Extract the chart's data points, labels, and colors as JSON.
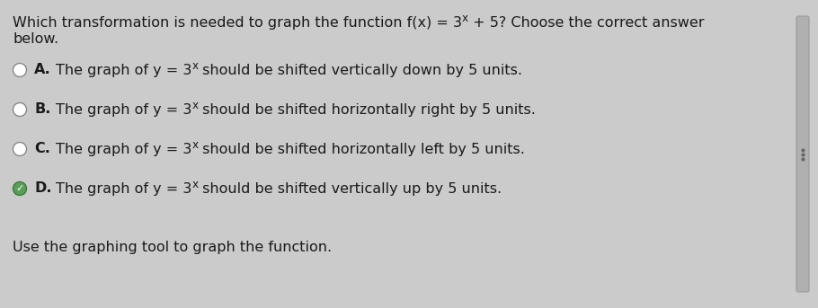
{
  "background_color": "#cccbcb",
  "text_color": "#1a1a1a",
  "font_size_title": 11.5,
  "font_size_options": 11.5,
  "font_size_footer": 11.5,
  "radio_border_color": "#888888",
  "radio_fill_color": "#ffffff",
  "check_bg_color": "#5a9e5a",
  "check_color": "#ffffff",
  "scrollbar_color": "#b0b0b0",
  "scrollbar_dot_color": "#666666",
  "title_line1": "Which transformation is needed to graph the function f(x) = 3",
  "title_sup": "x",
  "title_line1b": " + 5? Choose the correct answer",
  "title_line2": "below.",
  "option_prefix": "The graph of y = 3",
  "option_sup": "x",
  "option_suffixes": [
    " should be shifted vertically down by 5 units.",
    " should be shifted horizontally right by 5 units.",
    " should be shifted horizontally left by 5 units.",
    " should be shifted vertically up by 5 units."
  ],
  "labels": [
    "A.",
    "B.",
    "C.",
    "D."
  ],
  "selected_index": 3,
  "footer_text": "Use the graphing tool to graph the function."
}
